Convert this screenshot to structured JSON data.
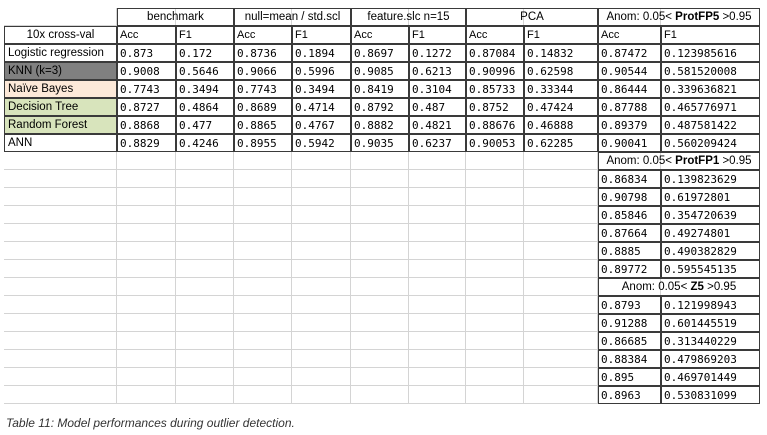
{
  "colors": {
    "knn": "#808080",
    "naive_bayes": "#fde9d9",
    "decision_tree": "#d8e4bc",
    "random_forest": "#d8e4bc",
    "grid": "#d4d4d4",
    "border": "#3a3a3a"
  },
  "header": {
    "first_col": "10x cross-val",
    "groups": [
      "benchmark",
      "null=mean / std.scl",
      "feature.slc n=15",
      "PCA"
    ],
    "anom_prefix": "Anom: 0.05< ",
    "anom_bold": "ProtFP5",
    "anom_suffix": " >0.95",
    "metrics": [
      "Acc",
      "F1",
      "Acc",
      "F1",
      "Acc",
      "F1",
      "Acc",
      "F1",
      "Acc",
      "F1"
    ]
  },
  "rows": [
    {
      "model": "Logistic regression",
      "values": [
        "0.873",
        "0.172",
        "0.8736",
        "0.1894",
        "0.8697",
        "0.1272",
        "0.87084",
        "0.14832",
        "0.87472",
        "0.123985616"
      ]
    },
    {
      "model": "KNN (k=3)",
      "values": [
        "0.9008",
        "0.5646",
        "0.9066",
        "0.5996",
        "0.9085",
        "0.6213",
        "0.90996",
        "0.62598",
        "0.90544",
        "0.581520008"
      ]
    },
    {
      "model": "Naïve Bayes",
      "values": [
        "0.7743",
        "0.3494",
        "0.7743",
        "0.3494",
        "0.8419",
        "0.3104",
        "0.85733",
        "0.33344",
        "0.86444",
        "0.339636821"
      ]
    },
    {
      "model": "Decision Tree",
      "values": [
        "0.8727",
        "0.4864",
        "0.8689",
        "0.4714",
        "0.8792",
        "0.487",
        "0.8752",
        "0.47424",
        "0.87788",
        "0.465776971"
      ]
    },
    {
      "model": "Random Forest",
      "values": [
        "0.8868",
        "0.477",
        "0.8865",
        "0.4767",
        "0.8882",
        "0.4821",
        "0.88676",
        "0.46888",
        "0.89379",
        "0.487581422"
      ]
    },
    {
      "model": "ANN",
      "values": [
        "0.8829",
        "0.4246",
        "0.8955",
        "0.5942",
        "0.9035",
        "0.6237",
        "0.90053",
        "0.62285",
        "0.90041",
        "0.560209424"
      ]
    }
  ],
  "protfp1": {
    "prefix": "Anom: 0.05< ",
    "bold": "ProtFP1",
    "suffix": " >0.95",
    "values": [
      [
        "0.86834",
        "0.139823629"
      ],
      [
        "0.90798",
        "0.61972801"
      ],
      [
        "0.85846",
        "0.354720639"
      ],
      [
        "0.87664",
        "0.49274801"
      ],
      [
        "0.8885",
        "0.490382829"
      ],
      [
        "0.89772",
        "0.595545135"
      ]
    ]
  },
  "z5": {
    "prefix": "Anom: 0.05< ",
    "bold": "Z5",
    "suffix": " >0.95",
    "values": [
      [
        "0.8793",
        "0.121998943"
      ],
      [
        "0.91288",
        "0.601445519"
      ],
      [
        "0.86685",
        "0.313440229"
      ],
      [
        "0.88384",
        "0.479869203"
      ],
      [
        "0.895",
        "0.469701449"
      ],
      [
        "0.8963",
        "0.530831099"
      ]
    ]
  },
  "caption": "Table 11: Model performances during outlier detection."
}
